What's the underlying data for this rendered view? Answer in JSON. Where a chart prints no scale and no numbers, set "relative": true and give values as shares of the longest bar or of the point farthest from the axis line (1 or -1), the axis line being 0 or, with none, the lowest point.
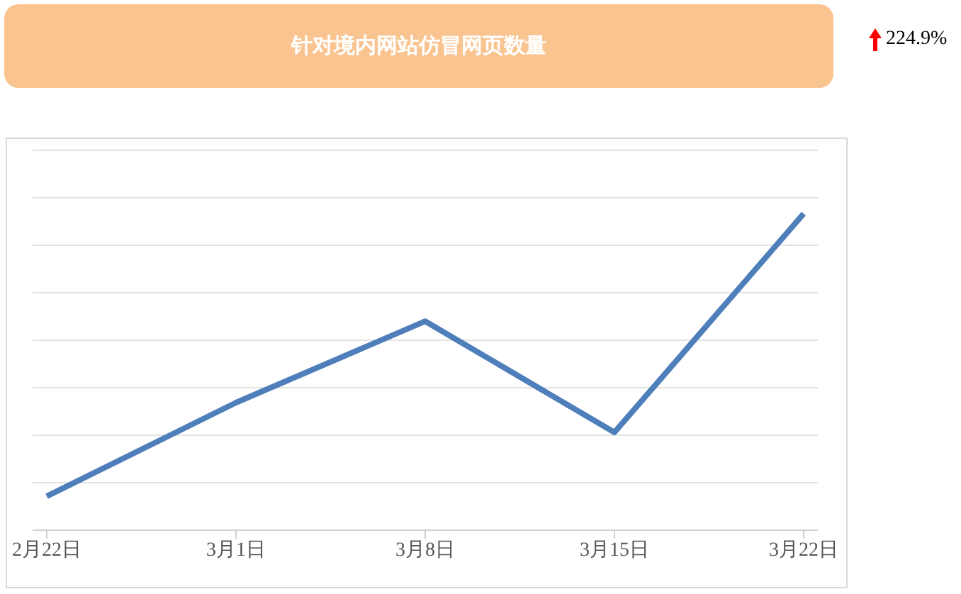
{
  "chart_data": {
    "type": "line",
    "title": "针对境内网站仿冒网页数量",
    "categories": [
      "2月22日",
      "3月1日",
      "3月8日",
      "3月15日",
      "3月22日"
    ],
    "series": [
      {
        "color": "#4f7fba",
        "values": [
          0.107,
          0.403,
          0.66,
          0.309,
          1
        ]
      }
    ],
    "relative": true,
    "grid": "y",
    "marker": "none",
    "line_style": "solid",
    "annotations": [
      "224.9%"
    ]
  }
}
